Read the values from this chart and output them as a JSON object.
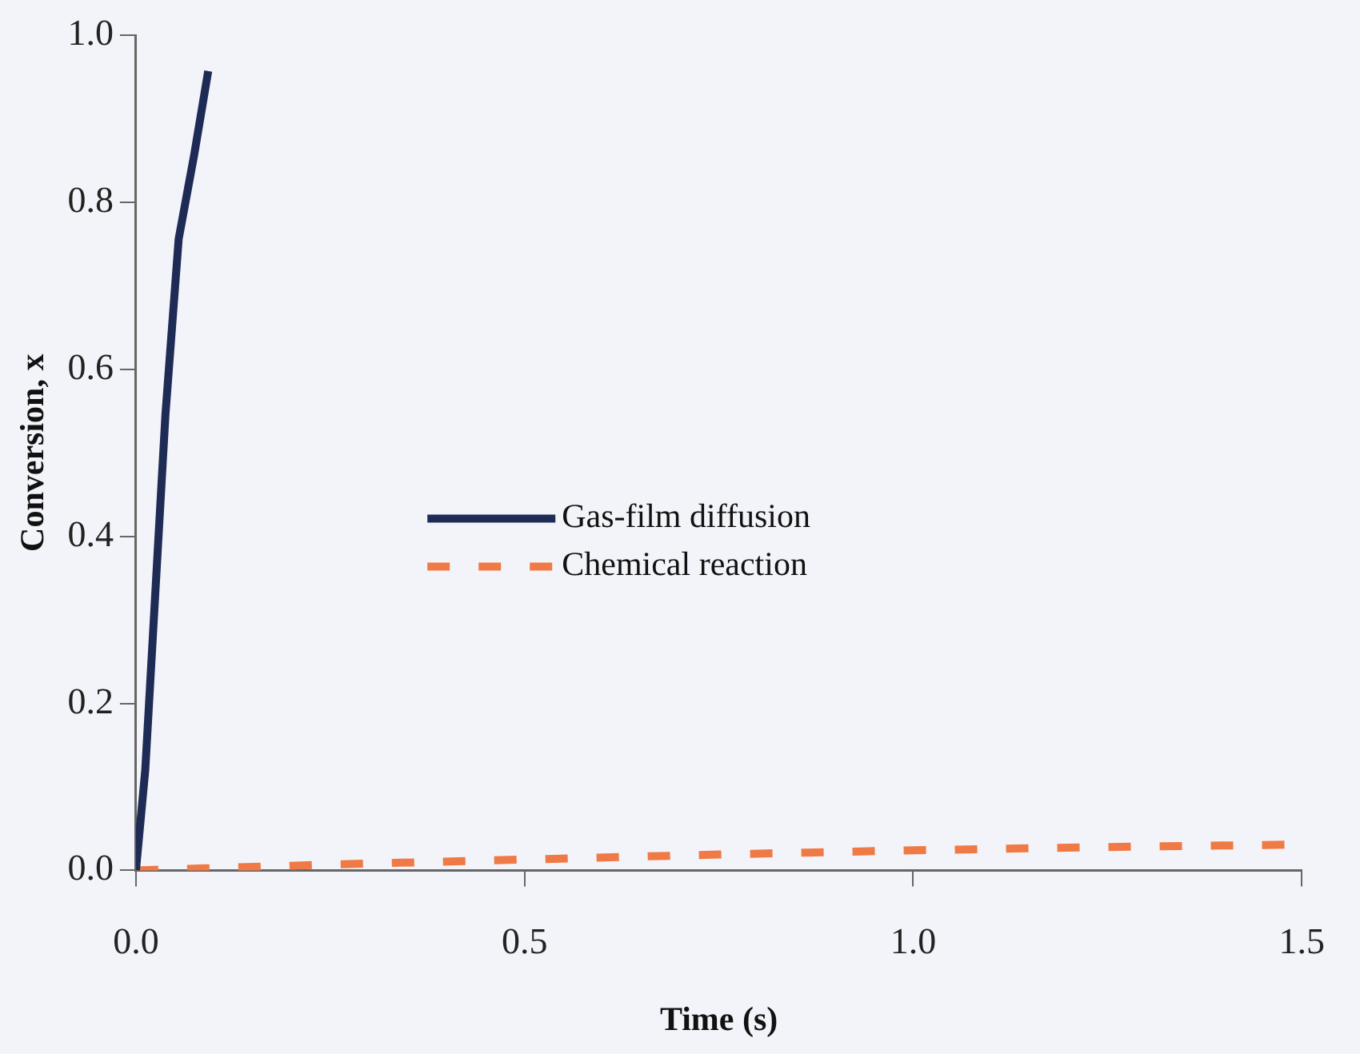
{
  "chart_data": {
    "type": "line",
    "xlabel": "Time (s)",
    "ylabel": "Conversion, x",
    "xlim": [
      0,
      1.5
    ],
    "xticks": [
      {
        "value": 0,
        "label": "0.0"
      },
      0.5,
      {
        "value": 1,
        "label": "1.0"
      },
      1.5
    ],
    "ylim": [
      0,
      1
    ],
    "yticks": [
      {
        "value": 0,
        "label": "0.0"
      },
      0.2,
      0.4,
      0.6,
      0.8,
      {
        "value": 1,
        "label": "1.0"
      }
    ],
    "grid": false,
    "legend": "center",
    "marker": "none",
    "series": [
      {
        "name": "Gas-film diffusion",
        "color": "#1e2b55",
        "line_style": "solid",
        "x": [
          0,
          0.012,
          0.038,
          0.055,
          0.075,
          0.093
        ],
        "values": [
          0,
          0.12,
          0.546,
          0.756,
          0.857,
          0.957
        ]
      },
      {
        "name": "Chemical reaction",
        "color": "#f07a45",
        "line_style": "dashed",
        "x": [
          0,
          0.25,
          0.5,
          0.75,
          1,
          1.25,
          1.5
        ],
        "values": [
          0,
          0.007,
          0.013,
          0.019,
          0.024,
          0.028,
          0.031
        ]
      }
    ]
  }
}
